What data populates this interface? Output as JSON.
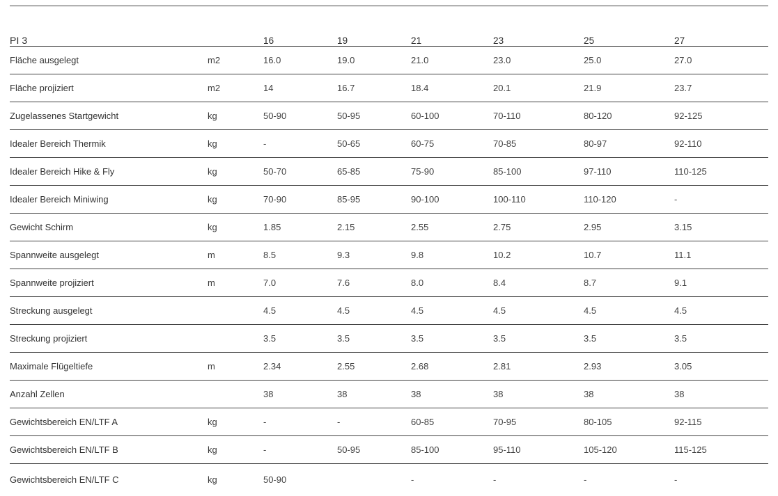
{
  "colors": {
    "background": "#ffffff",
    "rule": "#3f3f3f",
    "header_text": "#2d2d2d",
    "body_text": "#414141"
  },
  "chart_data": {
    "type": "table",
    "title": "PI 3",
    "sizes": [
      "16",
      "19",
      "21",
      "23",
      "25",
      "27"
    ],
    "rows": [
      {
        "label": "Fläche ausgelegt",
        "unit": "m2",
        "values": [
          "16.0",
          "19.0",
          "21.0",
          "23.0",
          "25.0",
          "27.0"
        ]
      },
      {
        "label": "Fläche projiziert",
        "unit": "m2",
        "values": [
          "14",
          "16.7",
          "18.4",
          "20.1",
          "21.9",
          "23.7"
        ]
      },
      {
        "label": "Zugelassenes Startgewicht",
        "unit": "kg",
        "values": [
          "50-90",
          "50-95",
          "60-100",
          "70-110",
          "80-120",
          "92-125"
        ]
      },
      {
        "label": "Idealer Bereich Thermik",
        "unit": "kg",
        "values": [
          "-",
          "50-65",
          "60-75",
          "70-85",
          "80-97",
          "92-110"
        ]
      },
      {
        "label": "Idealer Bereich Hike & Fly",
        "unit": "kg",
        "values": [
          "50-70",
          "65-85",
          "75-90",
          "85-100",
          "97-110",
          "110-125"
        ]
      },
      {
        "label": "Idealer Bereich Miniwing",
        "unit": "kg",
        "values": [
          "70-90",
          "85-95",
          "90-100",
          "100-110",
          "110-120",
          "-"
        ]
      },
      {
        "label": "Gewicht Schirm",
        "unit": "kg",
        "values": [
          "1.85",
          "2.15",
          "2.55",
          "2.75",
          "2.95",
          "3.15"
        ]
      },
      {
        "label": "Spannweite ausgelegt",
        "unit": "m",
        "values": [
          "8.5",
          "9.3",
          "9.8",
          "10.2",
          "10.7",
          "11.1"
        ]
      },
      {
        "label": "Spannweite projiziert",
        "unit": "m",
        "values": [
          "7.0",
          "7.6",
          "8.0",
          "8.4",
          "8.7",
          "9.1"
        ]
      },
      {
        "label": "Streckung ausgelegt",
        "unit": "",
        "values": [
          "4.5",
          "4.5",
          "4.5",
          "4.5",
          "4.5",
          "4.5"
        ]
      },
      {
        "label": "Streckung projiziert",
        "unit": "",
        "values": [
          "3.5",
          "3.5",
          "3.5",
          "3.5",
          "3.5",
          "3.5"
        ]
      },
      {
        "label": "Maximale Flügeltiefe",
        "unit": "m",
        "values": [
          "2.34",
          "2.55",
          "2.68",
          "2.81",
          "2.93",
          "3.05"
        ]
      },
      {
        "label": "Anzahl Zellen",
        "unit": "",
        "values": [
          "38",
          "38",
          "38",
          "38",
          "38",
          "38"
        ]
      },
      {
        "label": "Gewichtsbereich EN/LTF A",
        "unit": "kg",
        "values": [
          "-",
          "-",
          "60-85",
          "70-95",
          "80-105",
          "92-115"
        ]
      },
      {
        "label": "Gewichtsbereich EN/LTF B",
        "unit": "kg",
        "values": [
          "-",
          "50-95",
          "85-100",
          "95-110",
          "105-120",
          "115-125"
        ]
      },
      {
        "label": "Gewichtsbereich EN/LTF C",
        "unit": "kg",
        "values": [
          "50-90",
          "",
          "-",
          "-",
          "-",
          "-"
        ]
      }
    ]
  }
}
